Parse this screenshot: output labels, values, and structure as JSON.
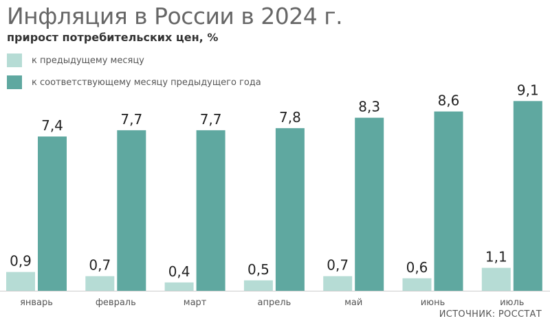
{
  "colors": {
    "monthly": "#b6dcd5",
    "yearly": "#5fa8a0",
    "title": "#666666",
    "axis": "#cccccc"
  },
  "chart_data": {
    "type": "bar",
    "title": "Инфляция в России в 2024 г.",
    "subtitle": "прирост потребительских цен, %",
    "categories": [
      "январь",
      "февраль",
      "март",
      "апрель",
      "май",
      "июнь",
      "июль"
    ],
    "series": [
      {
        "name": "к предыдущему месяцу",
        "values": [
          0.9,
          0.7,
          0.4,
          0.5,
          0.7,
          0.6,
          1.1
        ]
      },
      {
        "name": "к соответствующему месяцу предыдущего года",
        "values": [
          7.4,
          7.7,
          7.7,
          7.8,
          8.3,
          8.6,
          9.1
        ]
      }
    ],
    "data_labels": [
      [
        "0,9",
        "0,7",
        "0,4",
        "0,5",
        "0,7",
        "0,6",
        "1,1"
      ],
      [
        "7,4",
        "7,7",
        "7,7",
        "7,8",
        "8,3",
        "8,6",
        "9,1"
      ]
    ],
    "ylim": [
      0,
      9.5
    ],
    "grid": false,
    "legend_position": "top-left",
    "source": "ИСТОЧНИК: РОССТАТ"
  }
}
